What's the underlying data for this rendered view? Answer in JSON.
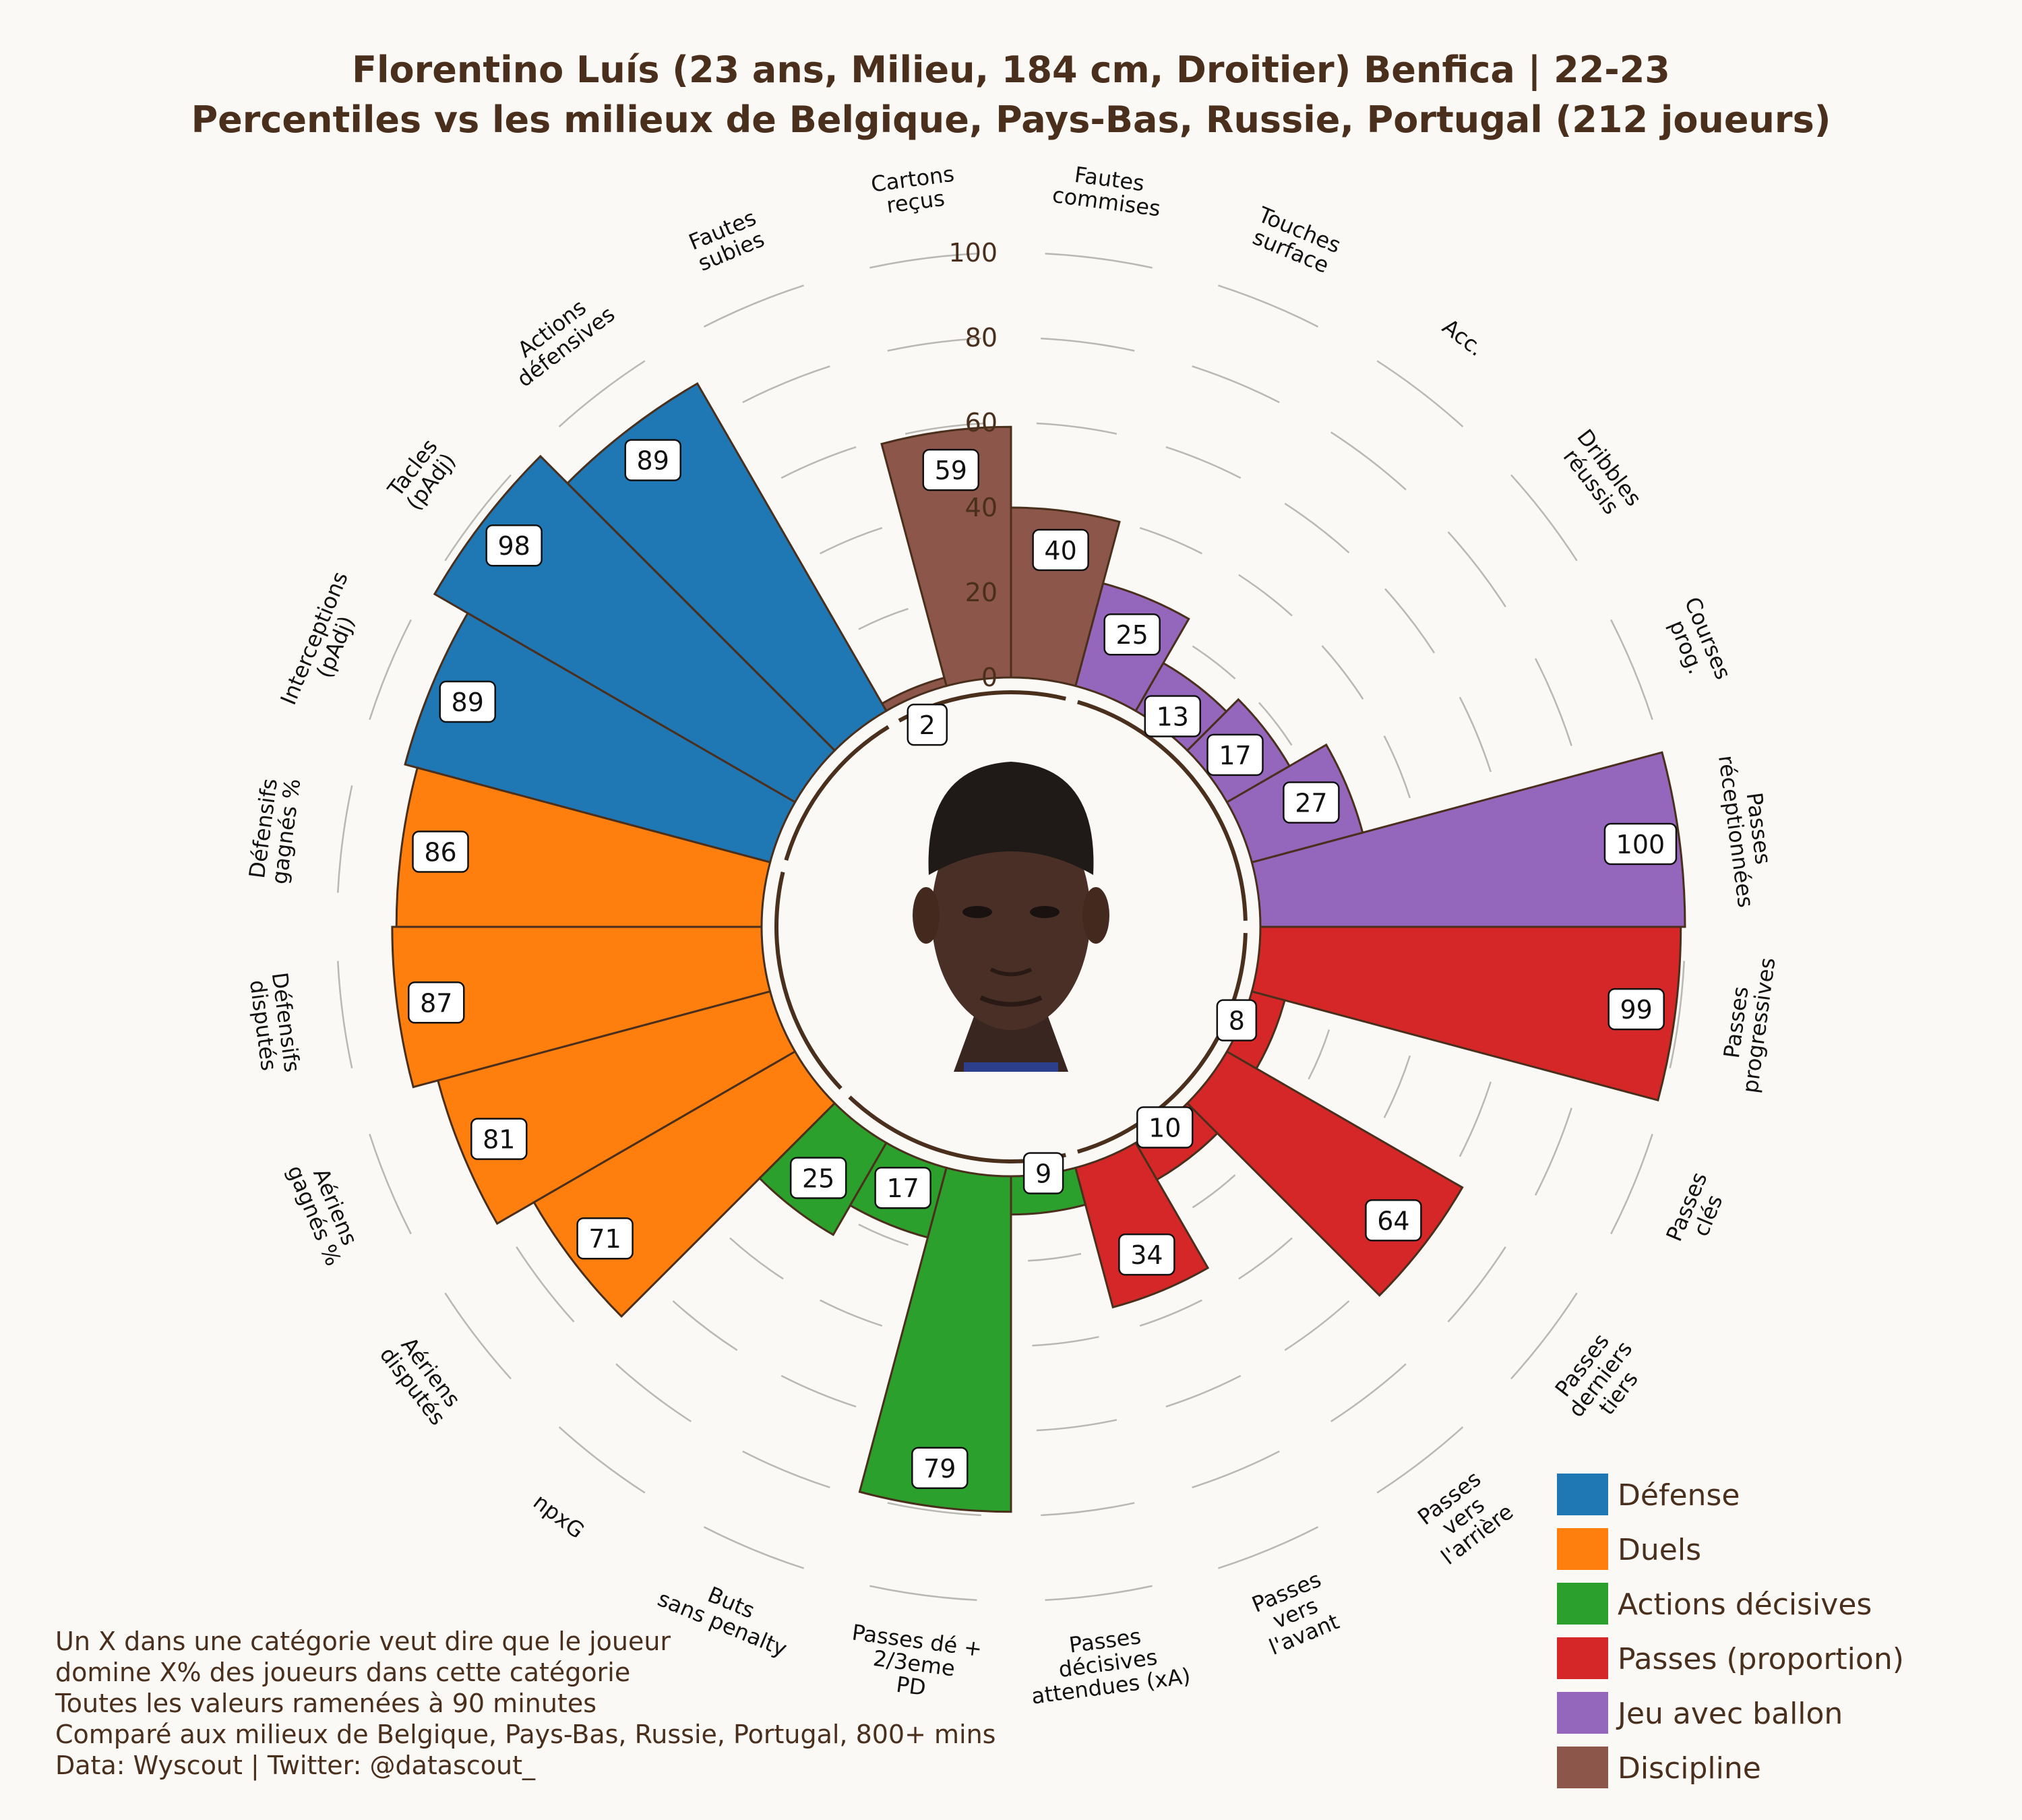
{
  "chart_data": {
    "type": "polar-bar",
    "title_lines": [
      "Florentino Luís (23 ans, Milieu, 184 cm, Droitier) Benfica | 22-23",
      "Percentiles vs les milieux de Belgique, Pays-Bas, Russie, Portugal (212 joueurs)"
    ],
    "radial_ticks": [
      "0",
      "20",
      "40",
      "60",
      "80",
      "100"
    ],
    "rlim": [
      0,
      100
    ],
    "photo": "player-portrait",
    "categories": [
      {
        "label": [
          "Passes",
          "réceptionnées"
        ],
        "value": 100,
        "group": "ball"
      },
      {
        "label": [
          "Courses",
          "prog."
        ],
        "value": 27,
        "group": "ball"
      },
      {
        "label": [
          "Dribbles",
          "réussis"
        ],
        "value": 17,
        "group": "ball"
      },
      {
        "label": [
          "Acc."
        ],
        "value": 13,
        "group": "ball"
      },
      {
        "label": [
          "Touches",
          "surface"
        ],
        "value": 25,
        "group": "ball"
      },
      {
        "label": [
          "Fautes",
          "commises"
        ],
        "value": 40,
        "group": "discipline"
      },
      {
        "label": [
          "Cartons",
          "reçus"
        ],
        "value": 59,
        "group": "discipline"
      },
      {
        "label": [
          "Fautes",
          "subies"
        ],
        "value": 2,
        "group": "discipline"
      },
      {
        "label": [
          "Actions",
          "défensives"
        ],
        "value": 89,
        "group": "defense"
      },
      {
        "label": [
          "Tacles",
          "(pAdj)"
        ],
        "value": 98,
        "group": "defense"
      },
      {
        "label": [
          "Interceptions",
          "(pAdj)"
        ],
        "value": 89,
        "group": "defense"
      },
      {
        "label": [
          "Défensifs",
          "gagnés %"
        ],
        "value": 86,
        "group": "duels"
      },
      {
        "label": [
          "Défensifs",
          "disputés"
        ],
        "value": 87,
        "group": "duels"
      },
      {
        "label": [
          "Aériens",
          "gagnés %"
        ],
        "value": 81,
        "group": "duels"
      },
      {
        "label": [
          "Aériens",
          "disputés"
        ],
        "value": 71,
        "group": "duels"
      },
      {
        "label": [
          "npxG"
        ],
        "value": 25,
        "group": "decisive"
      },
      {
        "label": [
          "Buts",
          "sans penalty"
        ],
        "value": 17,
        "group": "decisive"
      },
      {
        "label": [
          "Passes dé +",
          "2/3eme",
          "PD"
        ],
        "value": 79,
        "group": "decisive"
      },
      {
        "label": [
          "Passes",
          "décisives",
          "attendues (xA)"
        ],
        "value": 9,
        "group": "decisive"
      },
      {
        "label": [
          "Passes",
          "vers",
          "l'avant"
        ],
        "value": 34,
        "group": "passing"
      },
      {
        "label": [
          "Passes",
          "vers",
          "l'arrière"
        ],
        "value": 10,
        "group": "passing"
      },
      {
        "label": [
          "Passes",
          "derniers",
          "tiers"
        ],
        "value": 64,
        "group": "passing"
      },
      {
        "label": [
          "Passes",
          "clés"
        ],
        "value": 8,
        "group": "passing"
      },
      {
        "label": [
          "Passes",
          "progressives"
        ],
        "value": 99,
        "group": "passing"
      }
    ],
    "groups": [
      {
        "key": "defense",
        "name": "Défense",
        "color": "#1f77b4"
      },
      {
        "key": "duels",
        "name": "Duels",
        "color": "#ff7f0e"
      },
      {
        "key": "decisive",
        "name": "Actions décisives",
        "color": "#2ca02c"
      },
      {
        "key": "passing",
        "name": "Passes (proportion)",
        "color": "#d62728"
      },
      {
        "key": "ball",
        "name": "Jeu avec ballon",
        "color": "#9467bd"
      },
      {
        "key": "discipline",
        "name": "Discipline",
        "color": "#8c564b"
      }
    ],
    "legend_position": "bottom-right",
    "footnote_lines": [
      "Un X dans une catégorie veut dire que le joueur",
      "domine X% des joueurs dans cette catégorie",
      "Toutes les valeurs ramenées à 90 minutes",
      "Comparé aux milieux de Belgique, Pays-Bas, Russie, Portugal, 800+ mins",
      "Data: Wyscout | Twitter: @datascout_"
    ]
  }
}
